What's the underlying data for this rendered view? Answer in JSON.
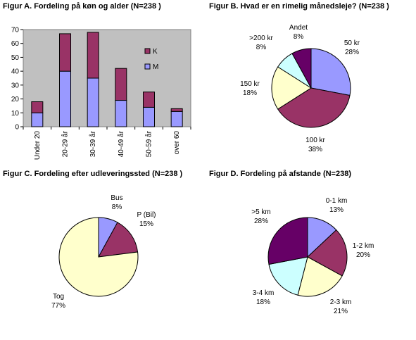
{
  "colors": {
    "m": "#9999ff",
    "k": "#993366",
    "yellow": "#ffffcc",
    "cyan": "#ccffff",
    "purple": "#660066",
    "stroke": "#000000"
  },
  "chart_data": [
    {
      "type": "bar",
      "stacked": true,
      "title": "Figur A. Fordeling på køn og alder (N=238  )",
      "categories": [
        "Under 20",
        "20-29 år",
        "30-39 år",
        "40-49 år",
        "50-59 år",
        "over 60"
      ],
      "series": [
        {
          "name": "M",
          "values": [
            10,
            40,
            35,
            19,
            14,
            11
          ],
          "color": "#9999ff"
        },
        {
          "name": "K",
          "values": [
            8,
            27,
            33,
            23,
            11,
            2
          ],
          "color": "#993366"
        }
      ],
      "yticks": [
        "0",
        "10",
        "20",
        "30",
        "40",
        "50",
        "60",
        "70"
      ],
      "ylim": [
        0,
        70
      ],
      "legend_position": "right"
    },
    {
      "type": "pie",
      "title": "Figur B. Hvad er en rimelig månedsleje? (N=238  )",
      "slices": [
        {
          "label": "50 kr",
          "pct": "28%",
          "value": 28,
          "color": "#9999ff"
        },
        {
          "label": "100 kr",
          "pct": "38%",
          "value": 38,
          "color": "#993366"
        },
        {
          "label": "150 kr",
          "pct": "18%",
          "value": 18,
          "color": "#ffffcc"
        },
        {
          "label": ">200 kr",
          "pct": "8%",
          "value": 8,
          "color": "#ccffff"
        },
        {
          "label": "Andet",
          "pct": "8%",
          "value": 8,
          "color": "#660066"
        }
      ]
    },
    {
      "type": "pie",
      "title": "Figur C. Fordeling efter udleveringssted (N=238 )",
      "slices": [
        {
          "label": "Bus",
          "pct": "8%",
          "value": 8,
          "color": "#9999ff"
        },
        {
          "label": "P (Bil)",
          "pct": "15%",
          "value": 15,
          "color": "#993366"
        },
        {
          "label": "Tog",
          "pct": "77%",
          "value": 77,
          "color": "#ffffcc"
        }
      ]
    },
    {
      "type": "pie",
      "title": "Figur D. Fordeling på afstande (N=238)",
      "slices": [
        {
          "label": "0-1 km",
          "pct": "13%",
          "value": 13,
          "color": "#9999ff"
        },
        {
          "label": "1-2 km",
          "pct": "20%",
          "value": 20,
          "color": "#993366"
        },
        {
          "label": "2-3 km",
          "pct": "21%",
          "value": 21,
          "color": "#ffffcc"
        },
        {
          "label": "3-4 km",
          "pct": "18%",
          "value": 18,
          "color": "#ccffff"
        },
        {
          "label": ">5 km",
          "pct": "28%",
          "value": 28,
          "color": "#660066"
        }
      ]
    }
  ]
}
